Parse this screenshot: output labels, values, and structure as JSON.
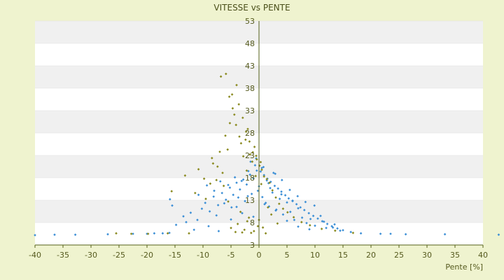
{
  "chart_data": {
    "type": "scatter",
    "title": "VITESSE vs PENTE",
    "xlabel": "Pente [%]",
    "ylabel": "",
    "xlim": [
      -40,
      40
    ],
    "ylim": [
      3,
      53
    ],
    "x_ticks": [
      -40,
      -35,
      -30,
      -25,
      -20,
      -15,
      -10,
      -5,
      0,
      5,
      10,
      15,
      20,
      25,
      30,
      35,
      40
    ],
    "y_ticks": [
      3,
      8,
      13,
      18,
      23,
      28,
      33,
      38,
      43,
      48,
      53
    ],
    "grid": true,
    "legend": "none",
    "colors": {
      "background": "#eff3cf",
      "plot_band_light": "#ffffff",
      "plot_band_dark": "#f0f0f0",
      "series_blue": "#3c8fd6",
      "series_olive": "#8a8a20",
      "axis": "#55601a"
    },
    "series": [
      {
        "color": "#3c8fd6",
        "marker": "diamond",
        "x": [
          -40,
          -36.5,
          -32.8,
          -27,
          -22.5,
          -20,
          -18.7,
          -17.2,
          -16,
          -15.5,
          -14.8,
          -13.5,
          -12.2,
          -11,
          -10.2,
          -9.6,
          -8.8,
          -8.1,
          -7.3,
          -6.6,
          -5.9,
          -5.2,
          -4.6,
          -4,
          -3.4,
          -2.8,
          -2.2,
          -1.6,
          -1,
          -0.4,
          0.3,
          0.9,
          1.5,
          2.1,
          2.8,
          3.4,
          4,
          4.7,
          5.3,
          6,
          6.7,
          7.4,
          8.1,
          8.9,
          9.7,
          10.5,
          11.3,
          12.2,
          13,
          14,
          15,
          16.4,
          18.2,
          21.7,
          23.5,
          26.2,
          33.2,
          42.8,
          -15.9,
          -13,
          -11.6,
          -9,
          -7.6,
          -6.2,
          -4.9,
          -3.7,
          -2.5,
          -1.3,
          -0.2,
          0.6,
          1.2,
          1.8,
          2.4,
          3.1,
          3.7,
          4.3,
          5,
          5.6,
          6.3,
          7,
          7.7,
          8.5,
          9.2,
          10,
          11,
          12,
          13.5,
          14.5,
          -10.8,
          -9.3,
          -8,
          -6.9,
          -5.5,
          -4.3,
          -3.1,
          -1.9,
          -0.7,
          0.5,
          1.7,
          2.9,
          4.1,
          5.5,
          6.9,
          8.3,
          9.9,
          11.6,
          13.2,
          -7.2,
          -5,
          -3,
          -1,
          1,
          3,
          5,
          7,
          9,
          -4,
          -2,
          0,
          2,
          4,
          6,
          -1.5,
          0.8,
          2.6,
          -0.5,
          1.4
        ],
        "y": [
          5.2,
          5.3,
          5.3,
          5.4,
          5.5,
          5.5,
          5.6,
          5.6,
          5.7,
          11.8,
          7.5,
          9.4,
          10.2,
          8.6,
          11.1,
          12.4,
          10.5,
          13.8,
          11.9,
          14.6,
          13.1,
          15.8,
          14.2,
          16.9,
          15.4,
          17.6,
          16.5,
          18.7,
          17.9,
          19.6,
          19.4,
          18.6,
          17.8,
          17.1,
          16.2,
          15.6,
          14.9,
          14.1,
          13.4,
          12.8,
          12.1,
          11.4,
          10.8,
          10.1,
          9.5,
          8.9,
          8.3,
          7.7,
          7.2,
          6.7,
          6.3,
          5.9,
          5.6,
          5.5,
          5.5,
          5.4,
          5.4,
          5.3,
          13.2,
          8.1,
          6.4,
          7.2,
          9.6,
          12.3,
          11.4,
          13.6,
          12.8,
          14.4,
          15.1,
          13.7,
          12.4,
          11.6,
          14.7,
          10.9,
          13.3,
          9.8,
          12.5,
          10.4,
          8.6,
          11.2,
          9.1,
          7.9,
          8.8,
          7.3,
          9.5,
          6.8,
          7.6,
          6.2,
          14.2,
          16.3,
          15.1,
          17.2,
          16.4,
          18.1,
          17.3,
          19.5,
          20.8,
          20.2,
          16.8,
          18.9,
          17.5,
          15.3,
          13.9,
          12.6,
          11.8,
          8.2,
          6.9,
          6.1,
          8.7,
          10.1,
          9.3,
          12.1,
          10.7,
          8.4,
          7.1,
          6.5,
          11.5,
          13.9,
          16.1,
          15.7,
          14.3,
          12.9,
          21.6,
          20.4,
          19.1,
          22.3,
          17.4
        ]
      },
      {
        "color": "#8a8a20",
        "marker": "diamond",
        "x": [
          -25.5,
          -22.8,
          -19.8,
          -16.3,
          -15.6,
          -13.2,
          -12.5,
          -11.4,
          -10.8,
          -9.5,
          -8.7,
          -8.2,
          -7.6,
          -7,
          -6.5,
          -6,
          -5.6,
          -5.2,
          -4.8,
          -4.4,
          -4,
          -3.6,
          -3.2,
          -2.8,
          -2.4,
          -2,
          -1.6,
          -1.2,
          -0.8,
          -0.4,
          0.1,
          0.5,
          0.9,
          1.4,
          1.9,
          2.4,
          3,
          3.6,
          4.3,
          5.1,
          6.2,
          7.6,
          9.1,
          11.2,
          13.6,
          16.8,
          -6.8,
          -5.9,
          -5.3,
          -4.7,
          -4.1,
          -3.5,
          -2.9,
          -2.3,
          -1.7,
          -1.1,
          -0.5,
          0.3,
          -5,
          -4.2,
          -3.8,
          -3,
          -2.6,
          -2.1,
          -1.4,
          -0.9,
          -0.2,
          0.7,
          1.2,
          -7.4,
          -6.3,
          -5.5,
          -3.3,
          -1.8,
          0,
          1.6,
          2.2,
          3.3,
          -9.8,
          -8.4,
          -2.2,
          -0.6,
          0.4
        ],
        "y": [
          5.6,
          5.5,
          5.5,
          5.6,
          15,
          18.5,
          5.6,
          14.6,
          19.9,
          13.3,
          16.7,
          21.2,
          17.5,
          23.8,
          19.1,
          27.4,
          24.3,
          30.2,
          36.6,
          32.1,
          38.7,
          34.4,
          25.7,
          22.8,
          26.5,
          28.9,
          23.2,
          21.6,
          24.9,
          22.1,
          20.7,
          19.8,
          18.3,
          17.7,
          16.9,
          15.2,
          13.6,
          12.2,
          11.1,
          10.3,
          9.2,
          8.1,
          7.4,
          6.6,
          6.2,
          5.7,
          40.6,
          41.2,
          36.1,
          33.5,
          29.8,
          27.2,
          31.4,
          28.3,
          26.1,
          23.7,
          22.9,
          21.5,
          6.8,
          5.9,
          7.7,
          5.8,
          6.4,
          8.3,
          5.7,
          6.1,
          7.2,
          6.9,
          5.6,
          20.5,
          16.2,
          12.7,
          10.4,
          9.1,
          8.6,
          11.4,
          9.8,
          7.8,
          17.8,
          22.4,
          19.6,
          18.4,
          16.6
        ]
      }
    ]
  }
}
